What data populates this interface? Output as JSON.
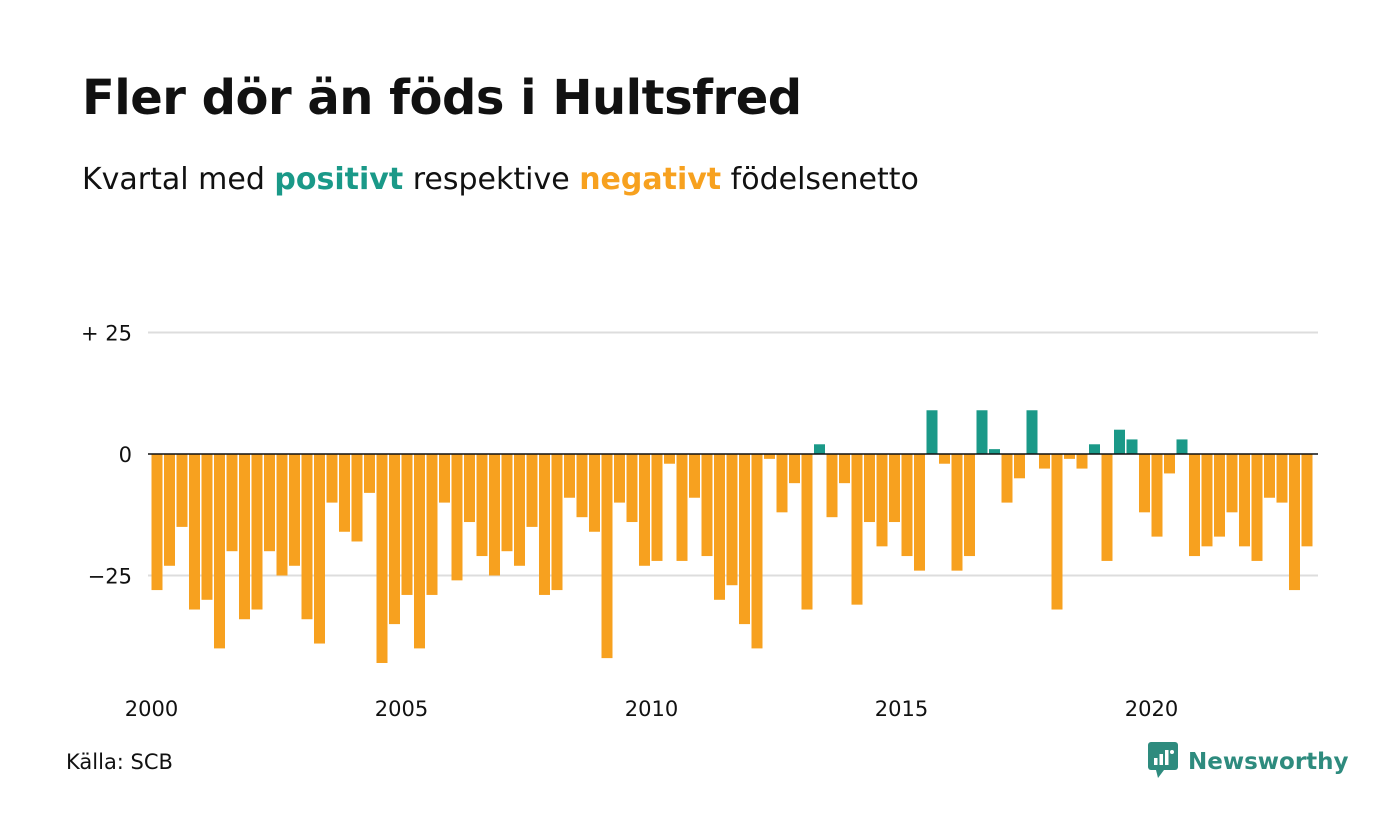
{
  "header": {
    "title": "Fler dör än föds i Hultsfred",
    "subtitle_part1": "Kvartal med ",
    "subtitle_positive": "positivt",
    "subtitle_part2": " respektive ",
    "subtitle_negative": "negativt",
    "subtitle_part3": " födelsenetto"
  },
  "footer": {
    "source": "Källa: SCB",
    "brand": "Newsworthy",
    "brand_icon": "newsworthy-logo-icon"
  },
  "colors": {
    "positive": "#1a9988",
    "negative": "#f7a11f",
    "grid": "#dddddd",
    "zero_line": "#111111",
    "brand": "#2e8b7e"
  },
  "chart_data": {
    "type": "bar",
    "title": "Fler dör än föds i Hultsfred",
    "subtitle": "Kvartal med positivt respektive negativt födelsenetto",
    "xlabel": "",
    "ylabel": "",
    "ylim": [
      -45,
      30
    ],
    "y_ticks": [
      {
        "value": 25,
        "label": "+ 25"
      },
      {
        "value": 0,
        "label": "0"
      },
      {
        "value": -25,
        "label": "−25"
      }
    ],
    "x_ticks": [
      {
        "value": 2000,
        "label": "2000"
      },
      {
        "value": 2005,
        "label": "2005"
      },
      {
        "value": 2010,
        "label": "2010"
      },
      {
        "value": 2015,
        "label": "2015"
      },
      {
        "value": 2020,
        "label": "2020"
      }
    ],
    "grid": true,
    "first_period": "2000 Q1",
    "periods_per_year": 4,
    "values": [
      -28,
      -23,
      -15,
      -32,
      -30,
      -40,
      -20,
      -34,
      -32,
      -20,
      -25,
      -23,
      -34,
      -39,
      -10,
      -16,
      -18,
      -8,
      -43,
      -35,
      -29,
      -40,
      -29,
      -10,
      -26,
      -14,
      -21,
      -25,
      -20,
      -23,
      -15,
      -29,
      -28,
      -9,
      -13,
      -16,
      -42,
      -10,
      -14,
      -23,
      -22,
      -2,
      -22,
      -9,
      -21,
      -30,
      -27,
      -35,
      -40,
      -1,
      -12,
      -6,
      -32,
      2,
      -13,
      -6,
      -31,
      -14,
      -19,
      -14,
      -21,
      -24,
      9,
      -2,
      -24,
      -21,
      9,
      1,
      -10,
      -5,
      9,
      -3,
      -32,
      -1,
      -3,
      2,
      -22,
      5,
      3,
      -12,
      -17,
      -4,
      3,
      -21,
      -19,
      -17,
      -12,
      -19,
      -22,
      -9,
      -10,
      -28,
      -19
    ]
  }
}
